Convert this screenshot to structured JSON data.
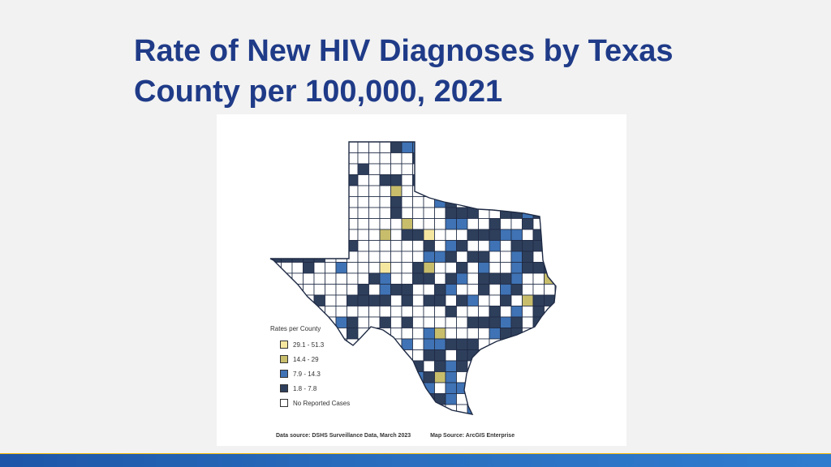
{
  "slide": {
    "title": "Rate of New HIV Diagnoses by Texas County per 100,000, 2021"
  },
  "map": {
    "legend_title": "Rates per County",
    "legend": [
      {
        "label": "29.1 - 51.3",
        "color": "#f6e7a0"
      },
      {
        "label": "14.4 - 29",
        "color": "#c8bd6b"
      },
      {
        "label": "7.9 - 14.3",
        "color": "#3f73b5"
      },
      {
        "label": "1.8 - 7.8",
        "color": "#2e3f5c"
      },
      {
        "label": "No Reported Cases",
        "color": "#ffffff"
      }
    ],
    "data_source": "Data source: DSHS Surveillance Data, March 2023",
    "map_source": "Map Source: ArcGIS Enterprise"
  },
  "colors": {
    "title": "#1f3b88",
    "county_border": "#1e2a44",
    "footer_blue": "#1d56a8",
    "footer_gold": "#f2b705"
  }
}
